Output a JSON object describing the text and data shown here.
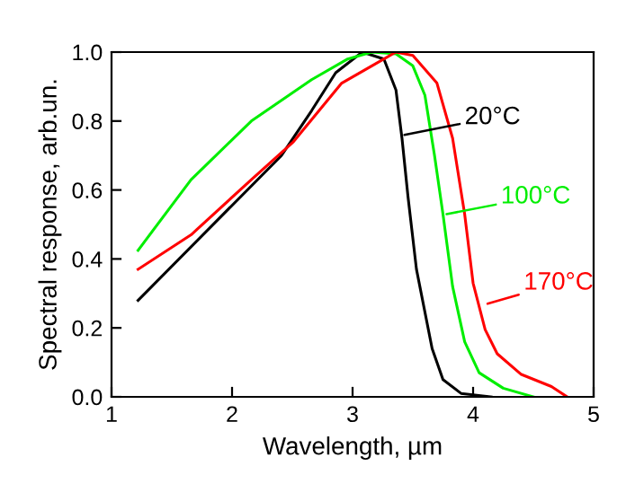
{
  "chart_data": {
    "type": "line",
    "xlabel": "Wavelength, µm",
    "ylabel": "Spectral response, arb.un.",
    "xlim": [
      1,
      5
    ],
    "ylim": [
      0,
      1.0
    ],
    "xticks": [
      1,
      2,
      3,
      4,
      5
    ],
    "yticks": [
      {
        "value": 0,
        "label": "0.0"
      },
      0.2,
      0.4,
      0.6,
      0.8,
      {
        "value": 1.0,
        "label": "1.0"
      }
    ],
    "grid": false,
    "marker": "none",
    "line_style": "solid",
    "series": [
      {
        "color": "#000000",
        "x": [
          1.22,
          2.41,
          2.66,
          2.86,
          3.08,
          3.26,
          3.36,
          3.41,
          3.46,
          3.53,
          3.66,
          3.75,
          3.9,
          4.15
        ],
        "values": [
          0.28,
          0.7,
          0.83,
          0.94,
          1.0,
          0.98,
          0.89,
          0.75,
          0.58,
          0.37,
          0.14,
          0.05,
          0.01,
          0
        ]
      },
      {
        "color": "#00ee00",
        "x": [
          1.22,
          1.66,
          2.16,
          2.66,
          2.96,
          3.16,
          3.36,
          3.5,
          3.6,
          3.68,
          3.75,
          3.83,
          3.93,
          4.05,
          4.25,
          4.5
        ],
        "values": [
          0.425,
          0.63,
          0.8,
          0.92,
          0.98,
          1.0,
          0.995,
          0.96,
          0.875,
          0.7,
          0.53,
          0.32,
          0.16,
          0.07,
          0.025,
          0
        ]
      },
      {
        "color": "#ff0000",
        "x": [
          1.22,
          1.66,
          2.16,
          2.51,
          2.91,
          3.16,
          3.36,
          3.5,
          3.7,
          3.83,
          3.93,
          4.0,
          4.1,
          4.2,
          4.4,
          4.65,
          4.78
        ],
        "values": [
          0.37,
          0.47,
          0.63,
          0.74,
          0.91,
          0.96,
          1.0,
          0.99,
          0.91,
          0.75,
          0.53,
          0.33,
          0.195,
          0.125,
          0.065,
          0.03,
          0
        ]
      }
    ],
    "annotations": [
      {
        "text": "20°C",
        "x": 3.43,
        "y": 0.76
      },
      {
        "text": "100°C",
        "x": 3.78,
        "y": 0.53
      },
      {
        "text": "170°C",
        "x": 4.12,
        "y": 0.27
      }
    ]
  }
}
